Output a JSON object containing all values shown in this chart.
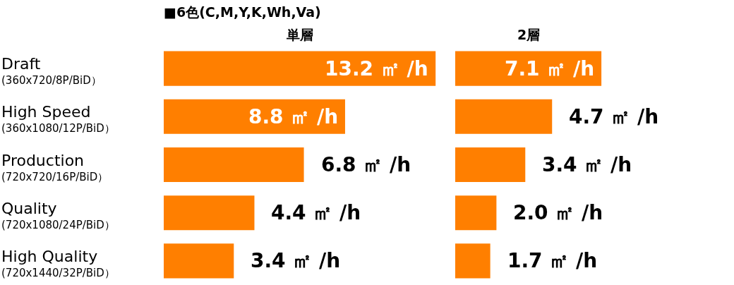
{
  "chart_data": [
    {
      "type": "bar",
      "orientation": "horizontal",
      "title": "■6色(C,M,Y,K,Wh,Va)",
      "subtitle": "単層",
      "tick_labels": "y",
      "categories": [
        "Draft\n(360x720/8P/BiD）",
        "High Speed\n(360x1080/12P/BiD）",
        "Production\n(720x720/16P/BiD）",
        "Quality\n(720x1080/24P/BiD）",
        "High Quality\n(720x1440/32P/BiD）"
      ],
      "values": [
        13.2,
        8.8,
        6.8,
        4.4,
        3.4
      ],
      "color": "#ff7f00",
      "value_labels": [
        "13.2 ㎡ /h",
        "8.8 ㎡ /h",
        "6.8 ㎡ /h",
        "4.4 ㎡ /h",
        "3.4 ㎡ /h"
      ]
    },
    {
      "type": "bar",
      "orientation": "horizontal",
      "subtitle": "2層",
      "tick_labels": false,
      "categories": [
        null,
        null,
        null,
        null,
        null
      ],
      "values": [
        7.1,
        4.7,
        3.4,
        2.0,
        1.7
      ],
      "color": "#ff7f00",
      "value_labels": [
        "7.1 ㎡ /h",
        "4.7 ㎡ /h",
        "3.4 ㎡ /h",
        "2.0 ㎡ /h",
        "1.7 ㎡ /h"
      ]
    }
  ]
}
